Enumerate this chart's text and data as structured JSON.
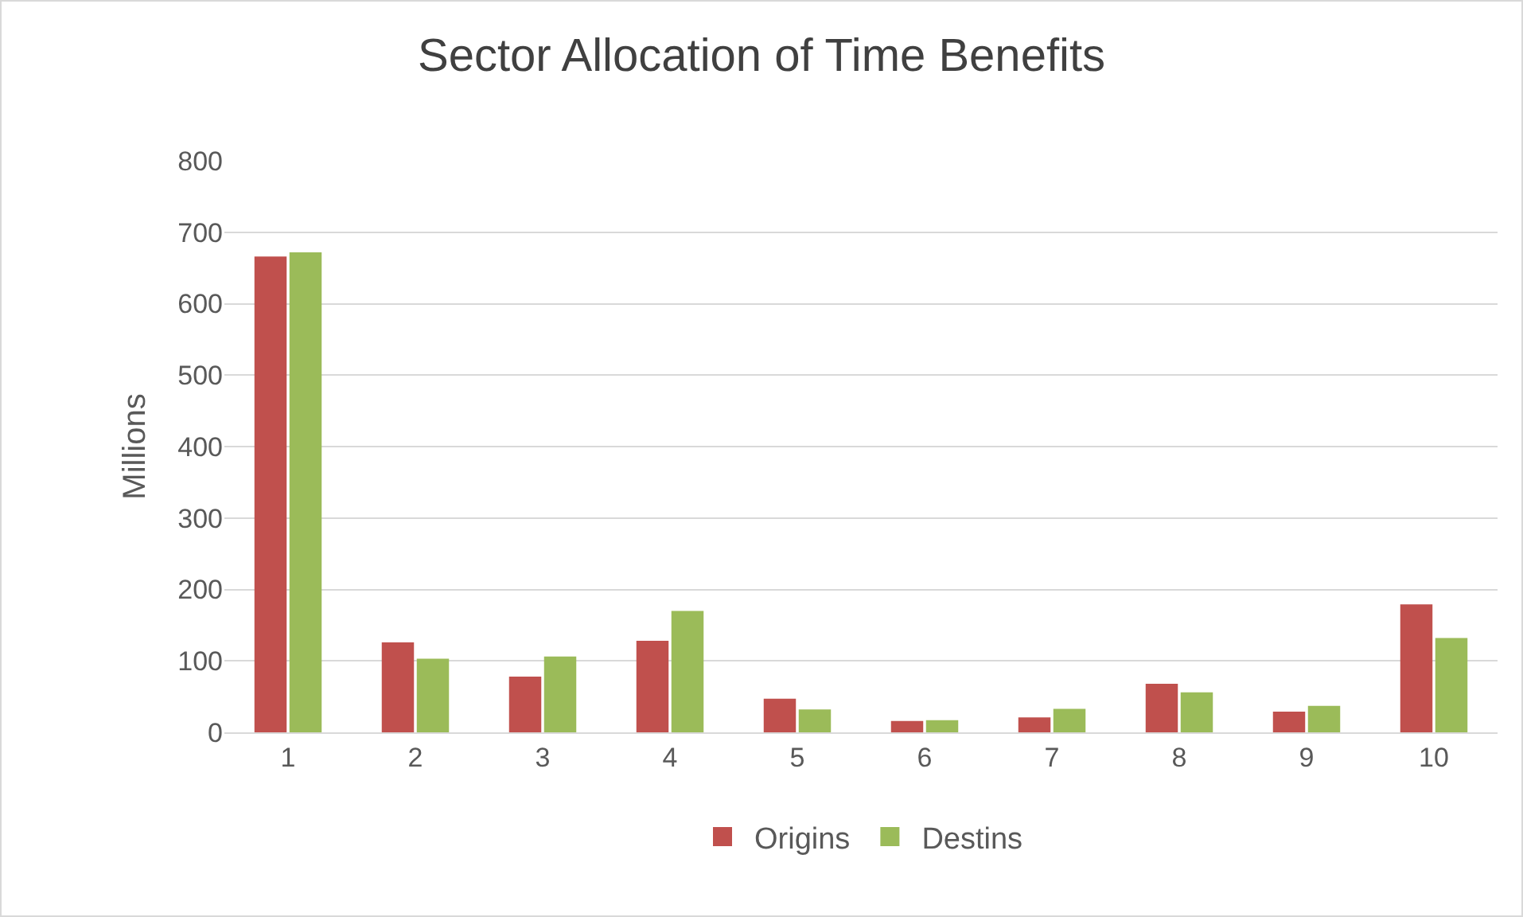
{
  "chart_data": {
    "type": "bar",
    "title": "Sector Allocation of Time Benefits",
    "ylabel": "Millions",
    "categories": [
      "1",
      "2",
      "3",
      "4",
      "5",
      "6",
      "7",
      "8",
      "9",
      "10"
    ],
    "series": [
      {
        "name": "Origins",
        "color": "#c0504d",
        "values": [
          666,
          126,
          78,
          128,
          47,
          16,
          21,
          68,
          29,
          179
        ]
      },
      {
        "name": "Destins",
        "color": "#9bbb59",
        "values": [
          672,
          103,
          106,
          170,
          32,
          17,
          33,
          56,
          37,
          132
        ]
      }
    ],
    "ylim": [
      0,
      800
    ],
    "yticks": [
      0,
      100,
      200,
      300,
      400,
      500,
      600,
      700,
      800
    ],
    "grid": "y",
    "legend": "bottom"
  }
}
